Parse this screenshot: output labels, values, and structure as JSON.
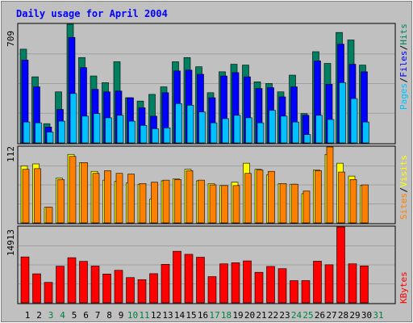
{
  "title": "Daily usage for April 2004",
  "colors": {
    "background": "#c0c0c0",
    "panel": "#c0c0c0",
    "grid": "#a0a0a0",
    "title": "#0000ff",
    "hits": "#008060",
    "files": "#0000ff",
    "pages": "#00c0ff",
    "visits": "#ffff00",
    "sites": "#ff8000",
    "kbytes": "#ff0000",
    "weekday_label": "#000000",
    "weekend_label": "#008040"
  },
  "chart_data": {
    "type": "bar",
    "title": "Daily usage for April 2004",
    "x_ticks": [
      "1",
      "2",
      "3",
      "4",
      "5",
      "6",
      "7",
      "8",
      "9",
      "10",
      "11",
      "12",
      "13",
      "14",
      "15",
      "16",
      "17",
      "18",
      "19",
      "20",
      "21",
      "22",
      "23",
      "24",
      "25",
      "26",
      "27",
      "28",
      "29",
      "30",
      "31"
    ],
    "weekend_days": [
      "3",
      "4",
      "10",
      "11",
      "17",
      "18",
      "24",
      "25",
      "31"
    ],
    "panels": [
      {
        "name": "traffic",
        "max_label": "709",
        "ymax": 709,
        "legend": [
          "Pages",
          "Files",
          "Hits"
        ],
        "series": [
          {
            "name": "Hits",
            "values": [
              560,
              395,
              115,
              305,
              709,
              510,
              400,
              360,
              485,
              270,
              250,
              290,
              335,
              485,
              510,
              455,
              300,
              425,
              470,
              465,
              365,
              355,
              305,
              405,
              175,
              545,
              475,
              660,
              615,
              465
            ]
          },
          {
            "name": "Files",
            "values": [
              495,
              335,
              95,
              200,
              630,
              450,
              320,
              305,
              310,
              270,
              210,
              160,
              300,
              430,
              435,
              410,
              270,
              400,
              420,
              395,
              325,
              330,
              275,
              335,
              165,
              490,
              350,
              590,
              470,
              425
            ]
          },
          {
            "name": "Pages",
            "values": [
              125,
              120,
              65,
              130,
              295,
              160,
              175,
              150,
              165,
              130,
              105,
              85,
              90,
              235,
              225,
              185,
              120,
              145,
              165,
              150,
              120,
              195,
              160,
              125,
              50,
              165,
              140,
              360,
              265,
              125
            ]
          }
        ]
      },
      {
        "name": "visitors",
        "max_label": "112",
        "ymax": 112,
        "legend": [
          "Sites",
          "Visits"
        ],
        "series": [
          {
            "name": "Visits",
            "values": [
              84,
              87,
              23,
              66,
              101,
              89,
              76,
              63,
              61,
              59,
              57,
              35,
              62,
              65,
              79,
              62,
              58,
              55,
              60,
              88,
              79,
              71,
              58,
              57,
              43,
              78,
              101,
              88,
              69,
              55
            ]
          },
          {
            "name": "Sites",
            "values": [
              79,
              80,
              23,
              64,
              98,
              89,
              73,
              77,
              73,
              72,
              58,
              60,
              63,
              64,
              77,
              63,
              56,
              55,
              55,
              73,
              78,
              76,
              58,
              57,
              47,
              77,
              112,
              75,
              64,
              56
            ]
          }
        ]
      },
      {
        "name": "kbytes",
        "max_label": "14913",
        "ymax": 14913,
        "legend": [
          "KBytes"
        ],
        "series": [
          {
            "name": "KBytes",
            "values": [
              9020,
              5700,
              4020,
              7200,
              8870,
              8150,
              7230,
              5660,
              6390,
              4960,
              4560,
              5730,
              7570,
              10130,
              9530,
              8960,
              5150,
              7660,
              7870,
              8240,
              6000,
              7150,
              6710,
              4360,
              4370,
              8180,
              7480,
              14913,
              7660,
              7260
            ]
          }
        ]
      }
    ]
  }
}
